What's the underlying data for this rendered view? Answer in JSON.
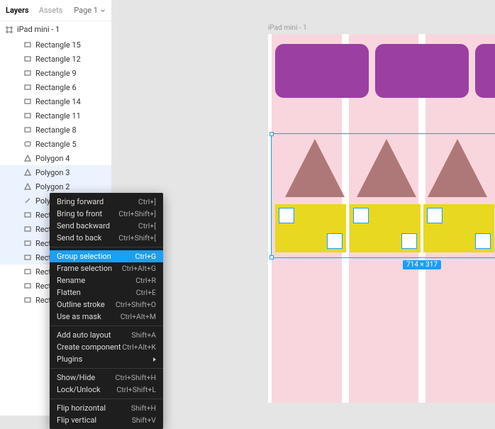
{
  "colors": {
    "canvas_bg": "#e5e5e5",
    "frame_bg": "#ffffff",
    "grid_col": "#f9d6dd",
    "selection": "#18a0fb",
    "rect_fill": "#9c3fa3",
    "tri_fill": "#af7878",
    "bar_fill": "#e8d820",
    "ctx_bg": "#1e1e1e"
  },
  "tabs": {
    "layers": "Layers",
    "assets": "Assets",
    "page": "Page 1"
  },
  "frame": {
    "name": "iPad mini - 1",
    "sel_label": "714 × 317"
  },
  "layers": [
    {
      "icon": "rect",
      "label": "Rectangle 15"
    },
    {
      "icon": "rect",
      "label": "Rectangle 12"
    },
    {
      "icon": "rect",
      "label": "Rectangle 9"
    },
    {
      "icon": "rect",
      "label": "Rectangle 6"
    },
    {
      "icon": "rect",
      "label": "Rectangle 14"
    },
    {
      "icon": "rect",
      "label": "Rectangle 11"
    },
    {
      "icon": "rect",
      "label": "Rectangle 8"
    },
    {
      "icon": "rrect",
      "label": "Rectangle 5"
    },
    {
      "icon": "tri",
      "label": "Polygon 4"
    },
    {
      "icon": "tri",
      "label": "Polygon 3",
      "sel": true
    },
    {
      "icon": "tri",
      "label": "Polygon 2",
      "sel": true
    },
    {
      "icon": "line",
      "label": "Polygon 1",
      "sel": true
    },
    {
      "icon": "rect",
      "label": "Rectangle 13",
      "sel": true
    },
    {
      "icon": "rect",
      "label": "Rectangle 10",
      "sel": true
    },
    {
      "icon": "rect",
      "label": "Rectangle 7",
      "sel": true
    },
    {
      "icon": "rect",
      "label": "Rectangle 4",
      "sel": true
    },
    {
      "icon": "rect",
      "label": "Rectangle 3"
    },
    {
      "icon": "rect",
      "label": "Rectangle 2"
    },
    {
      "icon": "rect",
      "label": "Rectangle 1"
    }
  ],
  "ctx": {
    "groups": [
      [
        {
          "label": "Bring forward",
          "sc": "Ctrl+]"
        },
        {
          "label": "Bring to front",
          "sc": "Ctrl+Shift+]"
        },
        {
          "label": "Send backward",
          "sc": "Ctrl+["
        },
        {
          "label": "Send to back",
          "sc": "Ctrl+Shift+["
        }
      ],
      [
        {
          "label": "Group selection",
          "sc": "Ctrl+G",
          "active": true
        },
        {
          "label": "Frame selection",
          "sc": "Ctrl+Alt+G"
        },
        {
          "label": "Rename",
          "sc": "Ctrl+R"
        },
        {
          "label": "Flatten",
          "sc": "Ctrl+E"
        },
        {
          "label": "Outline stroke",
          "sc": "Ctrl+Shift+O"
        },
        {
          "label": "Use as mask",
          "sc": "Ctrl+Alt+M"
        }
      ],
      [
        {
          "label": "Add auto layout",
          "sc": "Shift+A"
        },
        {
          "label": "Create component",
          "sc": "Ctrl+Alt+K"
        },
        {
          "label": "Plugins",
          "submenu": true
        }
      ],
      [
        {
          "label": "Show/Hide",
          "sc": "Ctrl+Shift+H"
        },
        {
          "label": "Lock/Unlock",
          "sc": "Ctrl+Shift+L"
        }
      ],
      [
        {
          "label": "Flip horizontal",
          "sc": "Shift+H"
        },
        {
          "label": "Flip vertical",
          "sc": "Shift+V"
        }
      ]
    ]
  }
}
